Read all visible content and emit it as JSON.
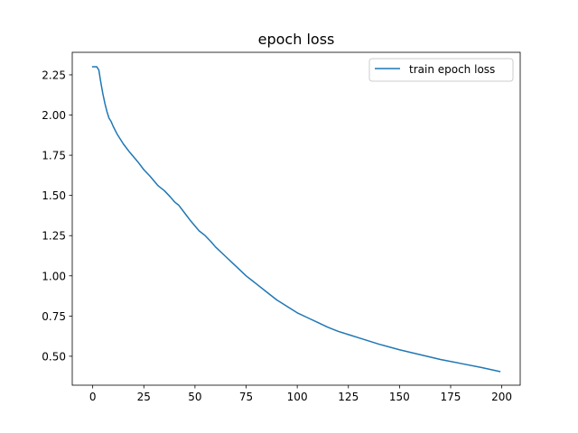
{
  "chart_data": {
    "type": "line",
    "title": "epoch loss",
    "xlabel": "",
    "ylabel": "",
    "xlim": [
      -10,
      209
    ],
    "ylim": [
      0.32,
      2.39
    ],
    "xticks": [
      "0",
      "25",
      "50",
      "75",
      "100",
      "125",
      "150",
      "175",
      "200"
    ],
    "yticks": [
      "0.50",
      "0.75",
      "1.00",
      "1.25",
      "1.50",
      "1.75",
      "2.00",
      "2.25"
    ],
    "grid": false,
    "legend_position": "top-right",
    "series": [
      {
        "name": "train epoch loss",
        "color": "#1f77b4",
        "x": [
          0,
          1,
          2,
          3,
          4,
          5,
          6,
          7,
          8,
          9,
          10,
          12,
          15,
          18,
          20,
          22,
          25,
          28,
          30,
          32,
          35,
          38,
          40,
          42,
          45,
          48,
          50,
          52,
          55,
          58,
          60,
          65,
          70,
          75,
          78,
          80,
          85,
          90,
          95,
          100,
          105,
          110,
          115,
          120,
          125,
          130,
          140,
          150,
          160,
          170,
          180,
          190,
          199
        ],
        "y": [
          2.3,
          2.3,
          2.3,
          2.28,
          2.2,
          2.13,
          2.07,
          2.02,
          1.98,
          1.96,
          1.93,
          1.88,
          1.82,
          1.77,
          1.74,
          1.71,
          1.66,
          1.62,
          1.59,
          1.56,
          1.53,
          1.49,
          1.46,
          1.44,
          1.39,
          1.34,
          1.31,
          1.28,
          1.25,
          1.21,
          1.18,
          1.12,
          1.06,
          1.0,
          0.97,
          0.95,
          0.9,
          0.85,
          0.81,
          0.77,
          0.74,
          0.71,
          0.68,
          0.655,
          0.635,
          0.615,
          0.575,
          0.54,
          0.51,
          0.48,
          0.455,
          0.43,
          0.405
        ]
      }
    ]
  }
}
